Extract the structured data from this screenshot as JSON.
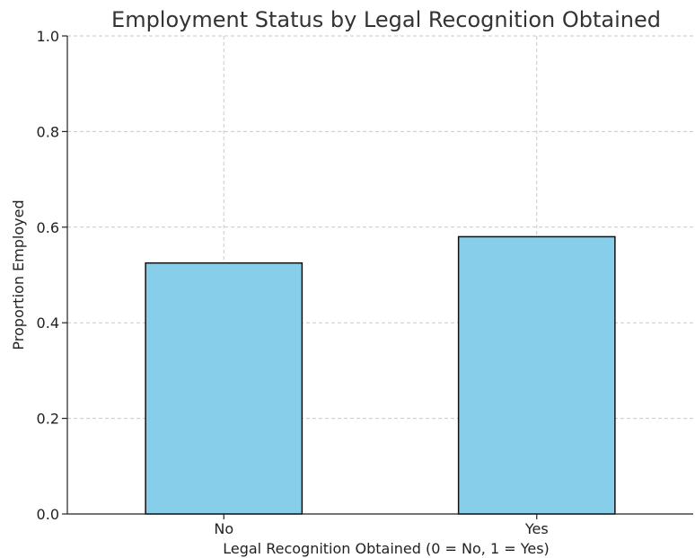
{
  "chart_data": {
    "type": "bar",
    "title": "Employment Status by Legal Recognition Obtained",
    "xlabel": "Legal Recognition Obtained (0 = No, 1 = Yes)",
    "ylabel": "Proportion Employed",
    "categories": [
      "No",
      "Yes"
    ],
    "values": [
      0.525,
      0.58
    ],
    "ylim": [
      0,
      1.0
    ],
    "yticks": [
      0.0,
      0.2,
      0.4,
      0.6,
      0.8,
      1.0
    ],
    "ytick_labels": [
      "0.0",
      "0.2",
      "0.4",
      "0.6",
      "0.8",
      "1.0"
    ],
    "grid": true,
    "bar_color": "#87ceeb",
    "edge_color": "#111111"
  }
}
